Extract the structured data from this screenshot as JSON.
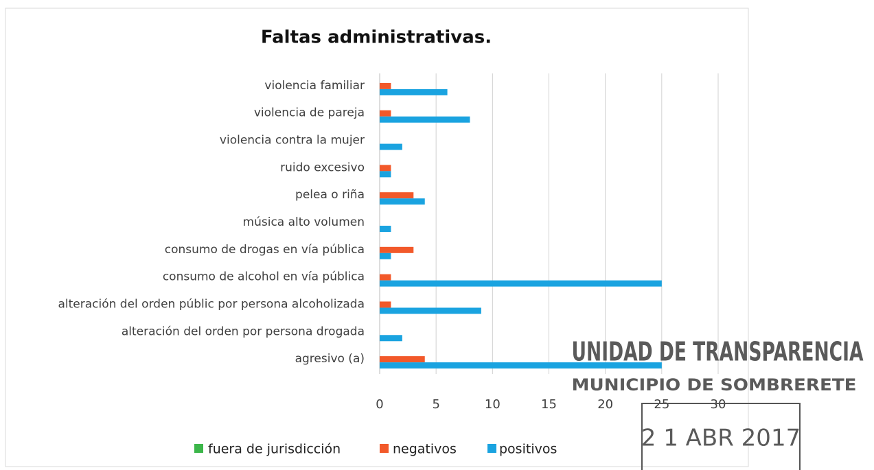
{
  "chart_data": {
    "type": "barh",
    "title": "Faltas administrativas.",
    "categories": [
      "violencia familiar",
      "violencia de pareja",
      "violencia contra la mujer",
      "ruido excesivo",
      "pelea o riña",
      "música alto volumen",
      "consumo de drogas en vía pública",
      "consumo de alcohol en vía pública",
      "alteración del orden públic por persona alcoholizada",
      "alteración del orden por persona drogada",
      "agresivo (a)"
    ],
    "series": [
      {
        "name": "fuera de jurisdicción",
        "color": "#3cb64a",
        "values": [
          0,
          0,
          0,
          0,
          0,
          0,
          0,
          0,
          0,
          0,
          0
        ]
      },
      {
        "name": "negativos",
        "color": "#f2592a",
        "values": [
          1,
          1,
          0,
          1,
          3,
          0,
          3,
          1,
          1,
          0,
          4
        ]
      },
      {
        "name": "positivos",
        "color": "#1aa3e0",
        "values": [
          6,
          8,
          2,
          1,
          4,
          1,
          1,
          25,
          9,
          2,
          25
        ]
      }
    ],
    "xlim": [
      0,
      30
    ],
    "xticks": [
      0,
      5,
      10,
      15,
      20,
      25,
      30
    ],
    "grid": true,
    "legend": "bottom",
    "annotations": [
      "UNIDAD DE TRANSPARENCIA",
      "MUNICIPIO DE SOMBRERETE",
      "2 1 ABR 2017"
    ]
  }
}
